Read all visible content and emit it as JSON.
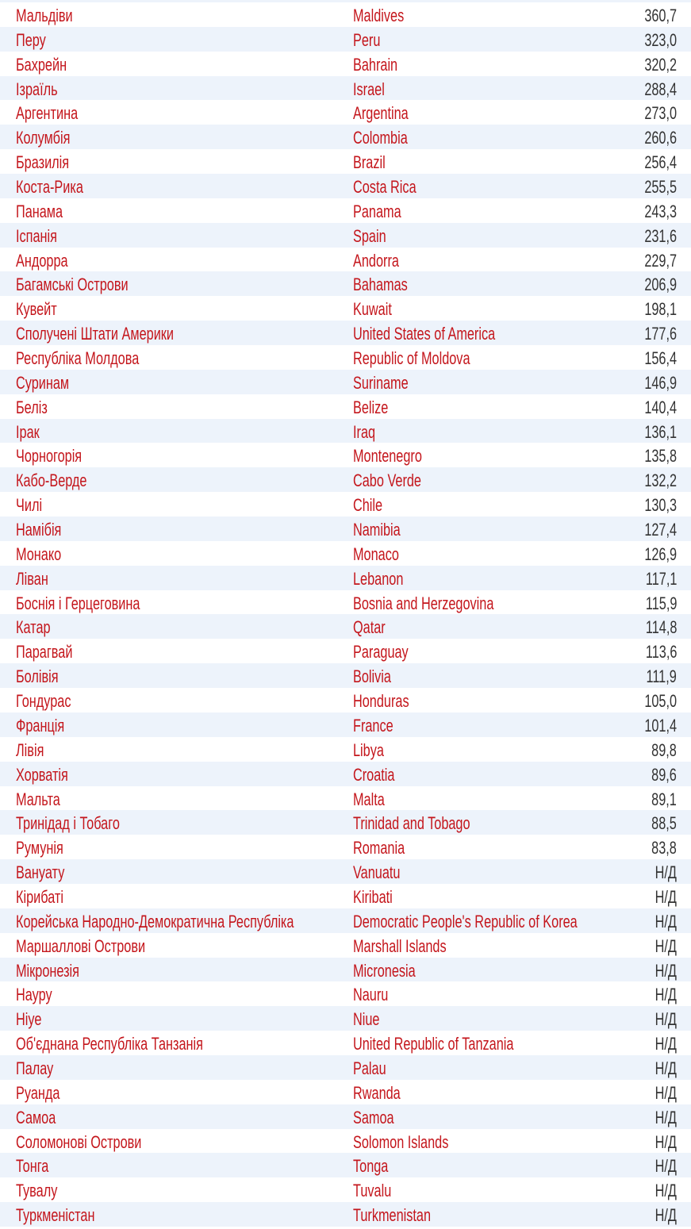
{
  "colors": {
    "text_name": "#c4161c",
    "text_value": "#333333",
    "row_stripe": "#edf3fb"
  },
  "rows": [
    {
      "uk": "Мальдіви",
      "en": "Maldives",
      "value": "360,7"
    },
    {
      "uk": "Перу",
      "en": "Peru",
      "value": "323,0"
    },
    {
      "uk": "Бахрейн",
      "en": "Bahrain",
      "value": "320,2"
    },
    {
      "uk": "Ізраїль",
      "en": "Israel",
      "value": "288,4"
    },
    {
      "uk": "Аргентина",
      "en": "Argentina",
      "value": "273,0"
    },
    {
      "uk": "Колумбія",
      "en": "Colombia",
      "value": "260,6"
    },
    {
      "uk": "Бразилія",
      "en": "Brazil",
      "value": "256,4"
    },
    {
      "uk": "Коста-Рика",
      "en": "Costa Rica",
      "value": "255,5"
    },
    {
      "uk": "Панама",
      "en": "Panama",
      "value": "243,3"
    },
    {
      "uk": "Іспанія",
      "en": "Spain",
      "value": "231,6"
    },
    {
      "uk": "Андорра",
      "en": "Andorra",
      "value": "229,7"
    },
    {
      "uk": "Багамські Острови",
      "en": "Bahamas",
      "value": "206,9"
    },
    {
      "uk": "Кувейт",
      "en": "Kuwait",
      "value": "198,1"
    },
    {
      "uk": "Сполучені Штати Америки",
      "en": "United States of America",
      "value": "177,6"
    },
    {
      "uk": "Республіка Молдова",
      "en": "Republic of Moldova",
      "value": "156,4"
    },
    {
      "uk": "Суринам",
      "en": "Suriname",
      "value": "146,9"
    },
    {
      "uk": "Беліз",
      "en": "Belize",
      "value": "140,4"
    },
    {
      "uk": "Ірак",
      "en": "Iraq",
      "value": "136,1"
    },
    {
      "uk": "Чорногорія",
      "en": "Montenegro",
      "value": "135,8"
    },
    {
      "uk": "Кабо-Верде",
      "en": "Cabo Verde",
      "value": "132,2"
    },
    {
      "uk": "Чилі",
      "en": "Chile",
      "value": "130,3"
    },
    {
      "uk": "Намібія",
      "en": "Namibia",
      "value": "127,4"
    },
    {
      "uk": "Монако",
      "en": "Monaco",
      "value": "126,9"
    },
    {
      "uk": "Ліван",
      "en": "Lebanon",
      "value": "117,1"
    },
    {
      "uk": "Боснія і Герцеговина",
      "en": "Bosnia and Herzegovina",
      "value": "115,9"
    },
    {
      "uk": "Катар",
      "en": "Qatar",
      "value": "114,8"
    },
    {
      "uk": "Парагвай",
      "en": "Paraguay",
      "value": "113,6"
    },
    {
      "uk": "Болівія",
      "en": "Bolivia",
      "value": "111,9"
    },
    {
      "uk": "Гондурас",
      "en": "Honduras",
      "value": "105,0"
    },
    {
      "uk": "Франція",
      "en": "France",
      "value": "101,4"
    },
    {
      "uk": "Лівія",
      "en": "Libya",
      "value": "89,8"
    },
    {
      "uk": "Хорватія",
      "en": "Croatia",
      "value": "89,6"
    },
    {
      "uk": "Мальта",
      "en": "Malta",
      "value": "89,1"
    },
    {
      "uk": "Тринідад і Тобаго",
      "en": "Trinidad and Tobago",
      "value": "88,5"
    },
    {
      "uk": "Румунія",
      "en": "Romania",
      "value": "83,8"
    },
    {
      "uk": "Вануату",
      "en": "Vanuatu",
      "value": "Н/Д"
    },
    {
      "uk": "Кірибаті",
      "en": "Kiribati",
      "value": "Н/Д"
    },
    {
      "uk": "Корейська Народно-Демократична Республіка",
      "en": "Democratic People's Republic of Korea",
      "value": "Н/Д"
    },
    {
      "uk": "Маршаллові Острови",
      "en": "Marshall Islands",
      "value": "Н/Д"
    },
    {
      "uk": "Мікронезія",
      "en": "Micronesia",
      "value": "Н/Д"
    },
    {
      "uk": "Науру",
      "en": "Nauru",
      "value": "Н/Д"
    },
    {
      "uk": "Ніуе",
      "en": "Niue",
      "value": "Н/Д"
    },
    {
      "uk": "Об'єднана Республіка Танзанія",
      "en": "United Republic of Tanzania",
      "value": "Н/Д"
    },
    {
      "uk": "Палау",
      "en": "Palau",
      "value": "Н/Д"
    },
    {
      "uk": "Руанда",
      "en": "Rwanda",
      "value": "Н/Д"
    },
    {
      "uk": "Самоа",
      "en": "Samoa",
      "value": "Н/Д"
    },
    {
      "uk": "Соломонові Острови",
      "en": "Solomon Islands",
      "value": "Н/Д"
    },
    {
      "uk": "Тонга",
      "en": "Tonga",
      "value": "Н/Д"
    },
    {
      "uk": "Тувалу",
      "en": "Tuvalu",
      "value": "Н/Д"
    },
    {
      "uk": "Туркменістан",
      "en": "Turkmenistan",
      "value": "Н/Д"
    }
  ]
}
